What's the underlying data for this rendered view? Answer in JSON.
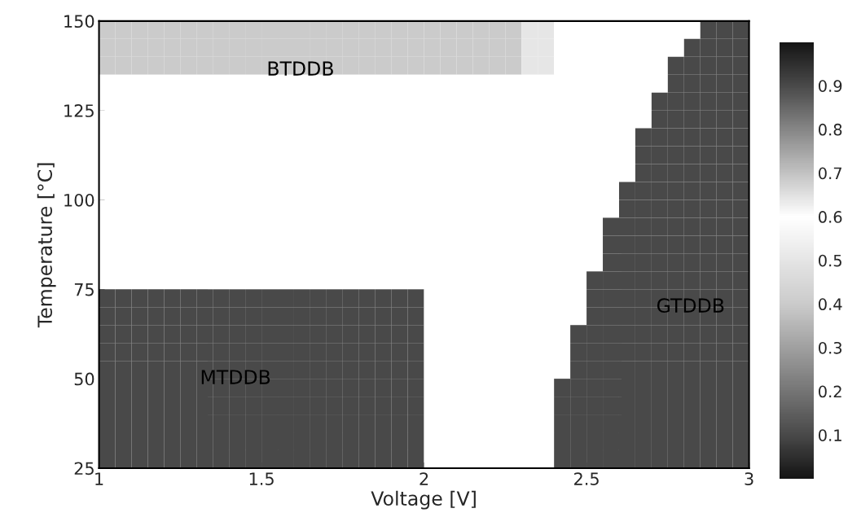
{
  "chart_data": {
    "type": "heatmap",
    "xlabel": "Voltage [V]",
    "ylabel": "Temperature [°C]",
    "x": [
      1.025,
      1.075,
      1.125,
      1.175,
      1.225,
      1.275,
      1.325,
      1.375,
      1.425,
      1.475,
      1.525,
      1.575,
      1.625,
      1.675,
      1.725,
      1.775,
      1.825,
      1.875,
      1.925,
      1.975,
      2.025,
      2.075,
      2.125,
      2.175,
      2.225,
      2.275,
      2.325,
      2.375,
      2.425,
      2.475,
      2.525,
      2.575,
      2.625,
      2.675,
      2.725,
      2.775,
      2.825,
      2.875,
      2.925,
      2.975
    ],
    "y": [
      147.5,
      142.5,
      137.5,
      132.5,
      127.5,
      122.5,
      117.5,
      112.5,
      107.5,
      102.5,
      97.5,
      92.5,
      87.5,
      82.5,
      77.5,
      72.5,
      67.5,
      62.5,
      57.5,
      52.5,
      47.5,
      42.5,
      37.5,
      32.5,
      27.5
    ],
    "cells": [
      [
        0.4,
        0.4,
        0.4,
        0.4,
        0.4,
        0.4,
        0.4,
        0.4,
        0.4,
        0.4,
        0.4,
        0.4,
        0.4,
        0.4,
        0.4,
        0.4,
        0.4,
        0.4,
        0.4,
        0.4,
        0.4,
        0.4,
        0.4,
        0.4,
        0.4,
        0.4,
        0.5,
        0.5,
        0.6,
        0.6,
        0.6,
        0.6,
        0.6,
        0.6,
        0.6,
        0.6,
        0.6,
        0.9,
        0.9,
        0.9
      ],
      [
        0.4,
        0.4,
        0.4,
        0.4,
        0.4,
        0.4,
        0.4,
        0.4,
        0.4,
        0.4,
        0.4,
        0.4,
        0.4,
        0.4,
        0.4,
        0.4,
        0.4,
        0.4,
        0.4,
        0.4,
        0.4,
        0.4,
        0.4,
        0.4,
        0.4,
        0.4,
        0.5,
        0.5,
        0.6,
        0.6,
        0.6,
        0.6,
        0.6,
        0.6,
        0.6,
        0.6,
        0.9,
        0.9,
        0.9,
        0.9
      ],
      [
        0.4,
        0.4,
        0.4,
        0.4,
        0.4,
        0.4,
        0.4,
        0.4,
        0.4,
        0.4,
        0.4,
        0.4,
        0.4,
        0.4,
        0.4,
        0.4,
        0.4,
        0.4,
        0.4,
        0.4,
        0.4,
        0.4,
        0.4,
        0.4,
        0.4,
        0.4,
        0.5,
        0.5,
        0.6,
        0.6,
        0.6,
        0.6,
        0.6,
        0.6,
        0.6,
        0.9,
        0.9,
        0.9,
        0.9,
        0.9
      ],
      [
        0.6,
        0.6,
        0.6,
        0.6,
        0.6,
        0.6,
        0.6,
        0.6,
        0.6,
        0.6,
        0.6,
        0.6,
        0.6,
        0.6,
        0.6,
        0.6,
        0.6,
        0.6,
        0.6,
        0.6,
        0.6,
        0.6,
        0.6,
        0.6,
        0.6,
        0.6,
        0.6,
        0.6,
        0.6,
        0.6,
        0.6,
        0.6,
        0.6,
        0.6,
        0.6,
        0.9,
        0.9,
        0.9,
        0.9,
        0.9
      ],
      [
        0.6,
        0.6,
        0.6,
        0.6,
        0.6,
        0.6,
        0.6,
        0.6,
        0.6,
        0.6,
        0.6,
        0.6,
        0.6,
        0.6,
        0.6,
        0.6,
        0.6,
        0.6,
        0.6,
        0.6,
        0.6,
        0.6,
        0.6,
        0.6,
        0.6,
        0.6,
        0.6,
        0.6,
        0.6,
        0.6,
        0.6,
        0.6,
        0.6,
        0.6,
        0.9,
        0.9,
        0.9,
        0.9,
        0.9,
        0.9
      ],
      [
        0.6,
        0.6,
        0.6,
        0.6,
        0.6,
        0.6,
        0.6,
        0.6,
        0.6,
        0.6,
        0.6,
        0.6,
        0.6,
        0.6,
        0.6,
        0.6,
        0.6,
        0.6,
        0.6,
        0.6,
        0.6,
        0.6,
        0.6,
        0.6,
        0.6,
        0.6,
        0.6,
        0.6,
        0.6,
        0.6,
        0.6,
        0.6,
        0.6,
        0.6,
        0.9,
        0.9,
        0.9,
        0.9,
        0.9,
        0.9
      ],
      [
        0.6,
        0.6,
        0.6,
        0.6,
        0.6,
        0.6,
        0.6,
        0.6,
        0.6,
        0.6,
        0.6,
        0.6,
        0.6,
        0.6,
        0.6,
        0.6,
        0.6,
        0.6,
        0.6,
        0.6,
        0.6,
        0.6,
        0.6,
        0.6,
        0.6,
        0.6,
        0.6,
        0.6,
        0.6,
        0.6,
        0.6,
        0.6,
        0.6,
        0.9,
        0.9,
        0.9,
        0.9,
        0.9,
        0.9,
        0.9
      ],
      [
        0.6,
        0.6,
        0.6,
        0.6,
        0.6,
        0.6,
        0.6,
        0.6,
        0.6,
        0.6,
        0.6,
        0.6,
        0.6,
        0.6,
        0.6,
        0.6,
        0.6,
        0.6,
        0.6,
        0.6,
        0.6,
        0.6,
        0.6,
        0.6,
        0.6,
        0.6,
        0.6,
        0.6,
        0.6,
        0.6,
        0.6,
        0.6,
        0.6,
        0.9,
        0.9,
        0.9,
        0.9,
        0.9,
        0.9,
        0.9
      ],
      [
        0.6,
        0.6,
        0.6,
        0.6,
        0.6,
        0.6,
        0.6,
        0.6,
        0.6,
        0.6,
        0.6,
        0.6,
        0.6,
        0.6,
        0.6,
        0.6,
        0.6,
        0.6,
        0.6,
        0.6,
        0.6,
        0.6,
        0.6,
        0.6,
        0.6,
        0.6,
        0.6,
        0.6,
        0.6,
        0.6,
        0.6,
        0.6,
        0.6,
        0.9,
        0.9,
        0.9,
        0.9,
        0.9,
        0.9,
        0.9
      ],
      [
        0.6,
        0.6,
        0.6,
        0.6,
        0.6,
        0.6,
        0.6,
        0.6,
        0.6,
        0.6,
        0.6,
        0.6,
        0.6,
        0.6,
        0.6,
        0.6,
        0.6,
        0.6,
        0.6,
        0.6,
        0.6,
        0.6,
        0.6,
        0.6,
        0.6,
        0.6,
        0.6,
        0.6,
        0.6,
        0.6,
        0.6,
        0.6,
        0.9,
        0.9,
        0.9,
        0.9,
        0.9,
        0.9,
        0.9,
        0.9
      ],
      [
        0.6,
        0.6,
        0.6,
        0.6,
        0.6,
        0.6,
        0.6,
        0.6,
        0.6,
        0.6,
        0.6,
        0.6,
        0.6,
        0.6,
        0.6,
        0.6,
        0.6,
        0.6,
        0.6,
        0.6,
        0.6,
        0.6,
        0.6,
        0.6,
        0.6,
        0.6,
        0.6,
        0.6,
        0.6,
        0.6,
        0.6,
        0.6,
        0.9,
        0.9,
        0.9,
        0.9,
        0.9,
        0.9,
        0.9,
        0.9
      ],
      [
        0.6,
        0.6,
        0.6,
        0.6,
        0.6,
        0.6,
        0.6,
        0.6,
        0.6,
        0.6,
        0.6,
        0.6,
        0.6,
        0.6,
        0.6,
        0.6,
        0.6,
        0.6,
        0.6,
        0.6,
        0.6,
        0.6,
        0.6,
        0.6,
        0.6,
        0.6,
        0.6,
        0.6,
        0.6,
        0.6,
        0.6,
        0.9,
        0.9,
        0.9,
        0.9,
        0.9,
        0.9,
        0.9,
        0.9,
        0.9
      ],
      [
        0.6,
        0.6,
        0.6,
        0.6,
        0.6,
        0.6,
        0.6,
        0.6,
        0.6,
        0.6,
        0.6,
        0.6,
        0.6,
        0.6,
        0.6,
        0.6,
        0.6,
        0.6,
        0.6,
        0.6,
        0.6,
        0.6,
        0.6,
        0.6,
        0.6,
        0.6,
        0.6,
        0.6,
        0.6,
        0.6,
        0.6,
        0.9,
        0.9,
        0.9,
        0.9,
        0.9,
        0.9,
        0.9,
        0.9,
        0.9
      ],
      [
        0.6,
        0.6,
        0.6,
        0.6,
        0.6,
        0.6,
        0.6,
        0.6,
        0.6,
        0.6,
        0.6,
        0.6,
        0.6,
        0.6,
        0.6,
        0.6,
        0.6,
        0.6,
        0.6,
        0.6,
        0.6,
        0.6,
        0.6,
        0.6,
        0.6,
        0.6,
        0.6,
        0.6,
        0.6,
        0.6,
        0.6,
        0.9,
        0.9,
        0.9,
        0.9,
        0.9,
        0.9,
        0.9,
        0.9,
        0.9
      ],
      [
        0.6,
        0.6,
        0.6,
        0.6,
        0.6,
        0.6,
        0.6,
        0.6,
        0.6,
        0.6,
        0.6,
        0.6,
        0.6,
        0.6,
        0.6,
        0.6,
        0.6,
        0.6,
        0.6,
        0.6,
        0.6,
        0.6,
        0.6,
        0.6,
        0.6,
        0.6,
        0.6,
        0.6,
        0.6,
        0.6,
        0.9,
        0.9,
        0.9,
        0.9,
        0.9,
        0.9,
        0.9,
        0.9,
        0.9,
        0.9
      ],
      [
        0.1,
        0.1,
        0.1,
        0.1,
        0.1,
        0.1,
        0.1,
        0.1,
        0.1,
        0.1,
        0.1,
        0.1,
        0.1,
        0.1,
        0.1,
        0.1,
        0.1,
        0.1,
        0.1,
        0.1,
        0.6,
        0.6,
        0.6,
        0.6,
        0.6,
        0.6,
        0.6,
        0.6,
        0.6,
        0.6,
        0.9,
        0.9,
        0.9,
        0.9,
        0.9,
        0.9,
        0.9,
        0.9,
        0.9,
        0.9
      ],
      [
        0.1,
        0.1,
        0.1,
        0.1,
        0.1,
        0.1,
        0.1,
        0.1,
        0.1,
        0.1,
        0.1,
        0.1,
        0.1,
        0.1,
        0.1,
        0.1,
        0.1,
        0.1,
        0.1,
        0.1,
        0.6,
        0.6,
        0.6,
        0.6,
        0.6,
        0.6,
        0.6,
        0.6,
        0.6,
        0.6,
        0.9,
        0.9,
        0.9,
        0.9,
        0.9,
        0.9,
        0.9,
        0.9,
        0.9,
        0.9
      ],
      [
        0.1,
        0.1,
        0.1,
        0.1,
        0.1,
        0.1,
        0.1,
        0.1,
        0.1,
        0.1,
        0.1,
        0.1,
        0.1,
        0.1,
        0.1,
        0.1,
        0.1,
        0.1,
        0.1,
        0.1,
        0.6,
        0.6,
        0.6,
        0.6,
        0.6,
        0.6,
        0.6,
        0.6,
        0.6,
        0.9,
        0.9,
        0.9,
        0.9,
        0.9,
        0.9,
        0.9,
        0.9,
        0.9,
        0.9,
        0.9
      ],
      [
        0.1,
        0.1,
        0.1,
        0.1,
        0.1,
        0.1,
        0.1,
        0.1,
        0.1,
        0.1,
        0.1,
        0.1,
        0.1,
        0.1,
        0.1,
        0.1,
        0.1,
        0.1,
        0.1,
        0.1,
        0.6,
        0.6,
        0.6,
        0.6,
        0.6,
        0.6,
        0.6,
        0.6,
        0.6,
        0.9,
        0.9,
        0.9,
        0.9,
        0.9,
        0.9,
        0.9,
        0.9,
        0.9,
        0.9,
        0.9
      ],
      [
        0.1,
        0.1,
        0.1,
        0.1,
        0.1,
        0.1,
        0.1,
        0.1,
        0.1,
        0.1,
        0.1,
        0.1,
        0.1,
        0.1,
        0.1,
        0.1,
        0.1,
        0.1,
        0.1,
        0.1,
        0.6,
        0.6,
        0.6,
        0.6,
        0.6,
        0.6,
        0.6,
        0.6,
        0.6,
        0.9,
        0.9,
        0.9,
        0.9,
        0.9,
        0.9,
        0.9,
        0.9,
        0.9,
        0.9,
        0.9
      ],
      [
        0.1,
        0.1,
        0.1,
        0.1,
        0.1,
        0.1,
        0.1,
        0.1,
        0.1,
        0.1,
        0.1,
        0.1,
        0.1,
        0.1,
        0.1,
        0.1,
        0.1,
        0.1,
        0.1,
        0.1,
        0.6,
        0.6,
        0.6,
        0.6,
        0.6,
        0.6,
        0.6,
        0.6,
        0.9,
        0.9,
        0.9,
        0.9,
        0.9,
        0.9,
        0.9,
        0.9,
        0.9,
        0.9,
        0.9,
        0.9
      ],
      [
        0.1,
        0.1,
        0.1,
        0.1,
        0.1,
        0.1,
        0.1,
        0.1,
        0.1,
        0.1,
        0.1,
        0.1,
        0.1,
        0.1,
        0.1,
        0.1,
        0.1,
        0.1,
        0.1,
        0.1,
        0.6,
        0.6,
        0.6,
        0.6,
        0.6,
        0.6,
        0.6,
        0.6,
        0.9,
        0.9,
        0.9,
        0.9,
        0.9,
        0.9,
        0.9,
        0.9,
        0.9,
        0.9,
        0.9,
        0.9
      ],
      [
        0.1,
        0.1,
        0.1,
        0.1,
        0.1,
        0.1,
        0.1,
        0.1,
        0.1,
        0.1,
        0.1,
        0.1,
        0.1,
        0.1,
        0.1,
        0.1,
        0.1,
        0.1,
        0.1,
        0.1,
        0.6,
        0.6,
        0.6,
        0.6,
        0.6,
        0.6,
        0.6,
        0.6,
        0.9,
        0.9,
        0.9,
        0.9,
        0.9,
        0.9,
        0.9,
        0.9,
        0.9,
        0.9,
        0.9,
        0.9
      ],
      [
        0.1,
        0.1,
        0.1,
        0.1,
        0.1,
        0.1,
        0.1,
        0.1,
        0.1,
        0.1,
        0.1,
        0.1,
        0.1,
        0.1,
        0.1,
        0.1,
        0.1,
        0.1,
        0.1,
        0.1,
        0.6,
        0.6,
        0.6,
        0.6,
        0.6,
        0.6,
        0.6,
        0.6,
        0.9,
        0.9,
        0.9,
        0.9,
        0.9,
        0.9,
        0.9,
        0.9,
        0.9,
        0.9,
        0.9,
        0.9
      ],
      [
        0.1,
        0.1,
        0.1,
        0.1,
        0.1,
        0.1,
        0.1,
        0.1,
        0.1,
        0.1,
        0.1,
        0.1,
        0.1,
        0.1,
        0.1,
        0.1,
        0.1,
        0.1,
        0.1,
        0.1,
        0.6,
        0.6,
        0.6,
        0.6,
        0.6,
        0.6,
        0.6,
        0.6,
        0.9,
        0.9,
        0.9,
        0.9,
        0.9,
        0.9,
        0.9,
        0.9,
        0.9,
        0.9,
        0.9,
        0.9
      ]
    ],
    "xlim": [
      1,
      3
    ],
    "ylim": [
      25,
      150
    ],
    "xticks": [
      1,
      1.5,
      2,
      2.5,
      3
    ],
    "yticks": [
      25,
      50,
      75,
      100,
      125,
      150
    ],
    "clim": [
      0,
      1
    ],
    "cticks": [
      0.1,
      0.2,
      0.3,
      0.4,
      0.5,
      0.6,
      0.7,
      0.8,
      0.9
    ],
    "annotations": [
      "BTDDB",
      "MTDDB",
      "GTDDB"
    ]
  }
}
